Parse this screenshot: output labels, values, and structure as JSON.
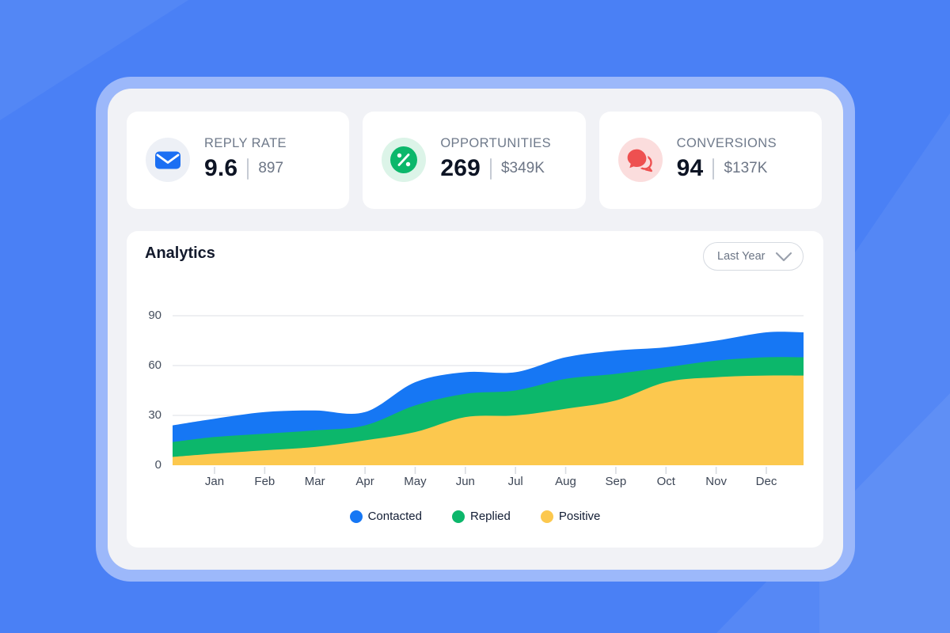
{
  "colors": {
    "background": "#4A80F5",
    "frame": "#9CB8FA",
    "panel": "#F1F2F6",
    "card": "#FFFFFF",
    "contacted_blue": "#1677F4",
    "replied_green": "#0CB76B",
    "positive_yellow": "#FCC84E"
  },
  "stats": {
    "cards": [
      {
        "icon": "mail-icon",
        "label": "REPLY RATE",
        "value": "9.6",
        "secondary": "897",
        "icon_color": "#1B6FF3",
        "icon_bg": "#EDF0F6"
      },
      {
        "icon": "percent-icon",
        "label": "OPPORTUNITIES",
        "value": "269",
        "secondary": "$349K",
        "icon_color": "#0CB76B",
        "icon_bg": "#DCF4E8"
      },
      {
        "icon": "chat-icon",
        "label": "CONVERSIONS",
        "value": "94",
        "secondary": "$137K",
        "icon_color": "#EE5050",
        "icon_bg": "#FBDDDD"
      }
    ]
  },
  "analytics": {
    "title": "Analytics",
    "period_selector": {
      "value": "Last Year",
      "icon": "chevron-down-icon"
    }
  },
  "chart_data": {
    "type": "area",
    "stacked": true,
    "title": "Analytics",
    "categories": [
      "Jan",
      "Feb",
      "Mar",
      "Apr",
      "May",
      "Jun",
      "Jul",
      "Aug",
      "Sep",
      "Oct",
      "Nov",
      "Dec"
    ],
    "y_ticks": [
      0,
      30,
      60,
      90
    ],
    "ylim": [
      0,
      95
    ],
    "grid": "horizontal",
    "legend_position": "bottom",
    "series": [
      {
        "name": "Contacted",
        "color": "#1677F4",
        "values": [
          11,
          13,
          12,
          8,
          14,
          13,
          11,
          13,
          14,
          12,
          12,
          15
        ],
        "edge_start": 10,
        "edge_end": 15
      },
      {
        "name": "Replied",
        "color": "#0CB76B",
        "values": [
          10,
          10,
          10,
          9,
          16,
          14,
          15,
          18,
          16,
          9,
          10,
          11
        ],
        "edge_start": 9,
        "edge_end": 11
      },
      {
        "name": "Positive",
        "color": "#FCC84E",
        "values": [
          7,
          9,
          11,
          15,
          20,
          29,
          30,
          34,
          39,
          50,
          53,
          54
        ],
        "edge_start": 5,
        "edge_end": 54
      }
    ]
  }
}
